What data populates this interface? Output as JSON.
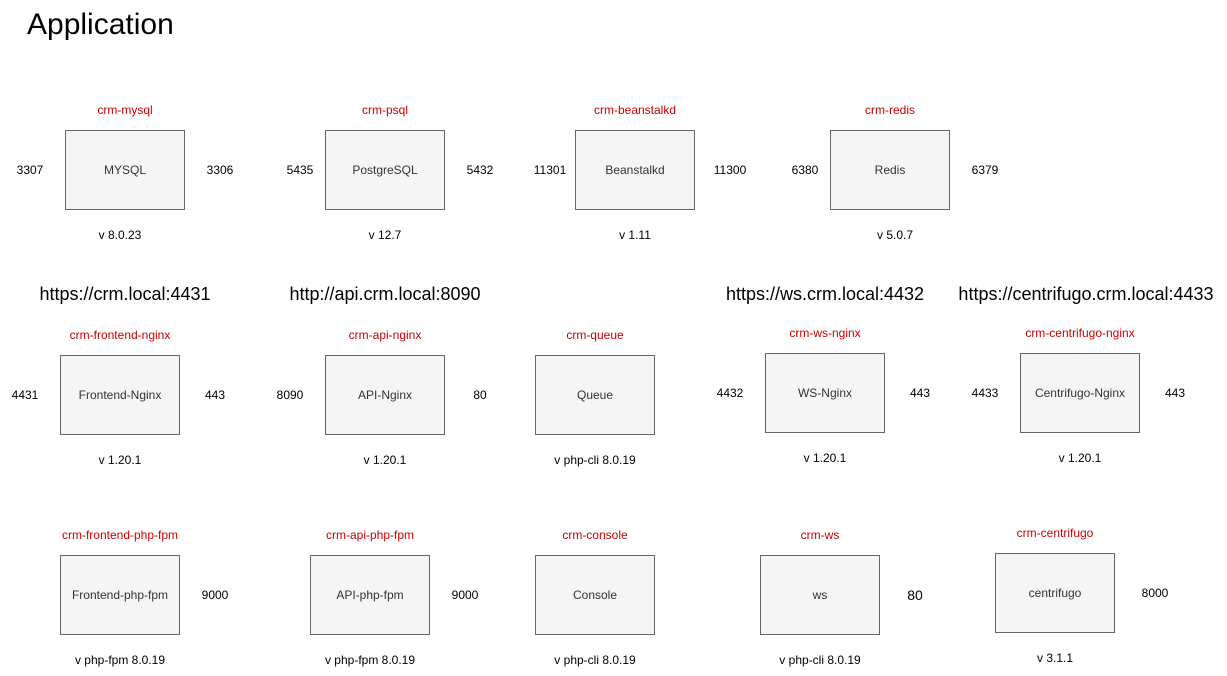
{
  "title": "Application",
  "urls": [
    "https://crm.local:4431",
    "http://api.crm.local:8090",
    "https://ws.crm.local:4432",
    "https://centrifugo.crm.local:4433"
  ],
  "containers": [
    {
      "name": "crm-mysql",
      "label": "MYSQL",
      "left_port": "3307",
      "right_port": "3306",
      "version": "v 8.0.23"
    },
    {
      "name": "crm-psql",
      "label": "PostgreSQL",
      "left_port": "5435",
      "right_port": "5432",
      "version": "v 12.7"
    },
    {
      "name": "crm-beanstalkd",
      "label": "Beanstalkd",
      "left_port": "11301",
      "right_port": "11300",
      "version": "v 1.11"
    },
    {
      "name": "crm-redis",
      "label": "Redis",
      "left_port": "6380",
      "right_port": "6379",
      "version": "v 5.0.7"
    },
    {
      "name": "crm-frontend-nginx",
      "label": "Frontend-Nginx",
      "left_port": "4431",
      "right_port": "443",
      "version": "v 1.20.1"
    },
    {
      "name": "crm-api-nginx",
      "label": "API-Nginx",
      "left_port": "8090",
      "right_port": "80",
      "version": "v 1.20.1"
    },
    {
      "name": "crm-queue",
      "label": "Queue",
      "version": "v php-cli 8.0.19"
    },
    {
      "name": "crm-ws-nginx",
      "label": "WS-Nginx",
      "left_port": "4432",
      "right_port": "443",
      "version": "v 1.20.1"
    },
    {
      "name": "crm-centrifugo-nginx",
      "label": "Centrifugo-Nginx",
      "left_port": "4433",
      "right_port": "443",
      "version": "v 1.20.1"
    },
    {
      "name": "crm-frontend-php-fpm",
      "label": "Frontend-php-fpm",
      "right_port": "9000",
      "version": "v php-fpm 8.0.19"
    },
    {
      "name": "crm-api-php-fpm",
      "label": "API-php-fpm",
      "right_port": "9000",
      "version": "v php-fpm 8.0.19"
    },
    {
      "name": "crm-console",
      "label": "Console",
      "version": "v php-cli 8.0.19"
    },
    {
      "name": "crm-ws",
      "label": "ws",
      "right_port": "80",
      "version": "v php-cli 8.0.19"
    },
    {
      "name": "crm-centrifugo",
      "label": "centrifugo",
      "right_port": "8000",
      "version": "v 3.1.1"
    }
  ]
}
